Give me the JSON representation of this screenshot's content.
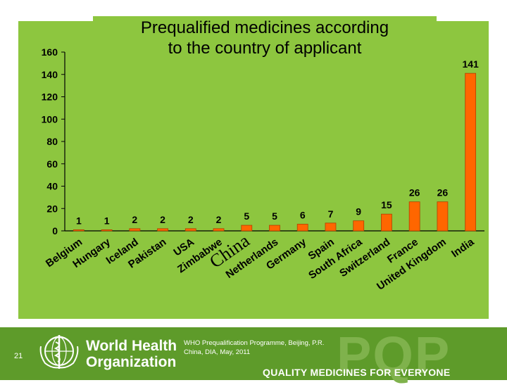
{
  "slide": {
    "page_number": "21",
    "organization_name_line1": "World Health",
    "organization_name_line2": "Organization",
    "event_text": "WHO Prequalification Programme, Beijing, P.R. China, DIA, May, 2011",
    "pqp_logo": "PQP",
    "tagline": "QUALITY MEDICINES FOR EVERYONE"
  },
  "colors": {
    "chart_background": "#8dc63f",
    "bar_fill": "#ff6600",
    "footer": "#5e9b2a"
  },
  "chart_data": {
    "type": "bar",
    "title": "Prequalified medicines according to the country of applicant",
    "title_line1": "Prequalified medicines according",
    "title_line2": "to the country of applicant",
    "categories": [
      "Belgium",
      "Hungary",
      "Iceland",
      "Pakistan",
      "USA",
      "Zimbabwe",
      "China",
      "Netherlands",
      "Germany",
      "Spain",
      "South Africa",
      "Switzerland",
      "France",
      "United Kingdom",
      "India"
    ],
    "values": [
      1,
      1,
      2,
      2,
      2,
      2,
      5,
      5,
      6,
      7,
      9,
      15,
      26,
      26,
      141
    ],
    "ylim": [
      0,
      160
    ],
    "yticks": [
      0,
      20,
      40,
      60,
      80,
      100,
      120,
      140,
      160
    ],
    "grid": false,
    "legend": "none"
  }
}
